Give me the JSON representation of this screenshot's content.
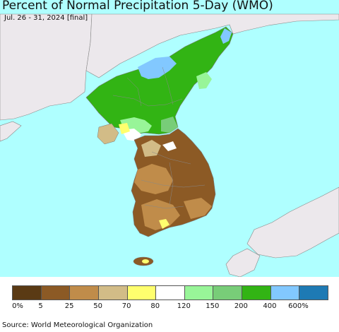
{
  "header": {
    "title": "Percent of Normal Precipitation 5-Day (WMO)",
    "subtitle": "Jul. 26 - 31, 2024 [final]"
  },
  "map": {
    "ocean_color": "#afffff",
    "neighbor_land_color": "#ece8ec",
    "boundary_color": "#888888"
  },
  "legend": {
    "colors": [
      "#5a3a14",
      "#8c5a25",
      "#c08c4a",
      "#d2bc87",
      "#ffff6e",
      "#ffffff",
      "#98f598",
      "#78cd78",
      "#32b414",
      "#82c8ff",
      "#1e7ab4"
    ],
    "labels": [
      "0%",
      "5",
      "25",
      "50",
      "70",
      "80",
      "120",
      "150",
      "200",
      "400",
      "600%"
    ]
  },
  "footer": {
    "source": "Source: World Meteorological Organization"
  }
}
